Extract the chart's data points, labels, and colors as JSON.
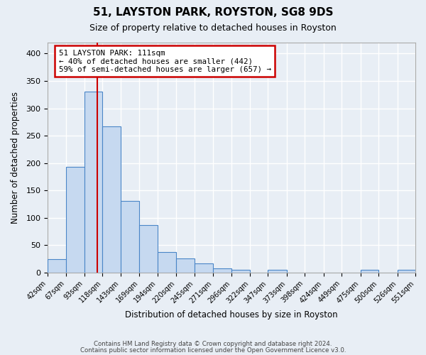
{
  "title": "51, LAYSTON PARK, ROYSTON, SG8 9DS",
  "subtitle": "Size of property relative to detached houses in Royston",
  "xlabel": "Distribution of detached houses by size in Royston",
  "ylabel": "Number of detached properties",
  "bar_edges": [
    42,
    67,
    93,
    118,
    143,
    169,
    194,
    220,
    245,
    271,
    296,
    322,
    347,
    373,
    398,
    424,
    449,
    475,
    500,
    526,
    551
  ],
  "bar_heights": [
    25,
    193,
    330,
    267,
    131,
    87,
    38,
    26,
    17,
    8,
    5,
    0,
    5,
    0,
    0,
    0,
    0,
    5,
    0,
    5
  ],
  "bar_color": "#c6d9f0",
  "bar_edge_color": "#4a86c8",
  "vline_x": 111,
  "vline_color": "#cc0000",
  "annotation_text": "51 LAYSTON PARK: 111sqm\n← 40% of detached houses are smaller (442)\n59% of semi-detached houses are larger (657) →",
  "annotation_box_color": "#ffffff",
  "annotation_box_edge": "#cc0000",
  "ylim": [
    0,
    420
  ],
  "yticks": [
    0,
    50,
    100,
    150,
    200,
    250,
    300,
    350,
    400
  ],
  "bg_color": "#e8eef5",
  "grid_color": "#ffffff",
  "footnote1": "Contains HM Land Registry data © Crown copyright and database right 2024.",
  "footnote2": "Contains public sector information licensed under the Open Government Licence v3.0."
}
